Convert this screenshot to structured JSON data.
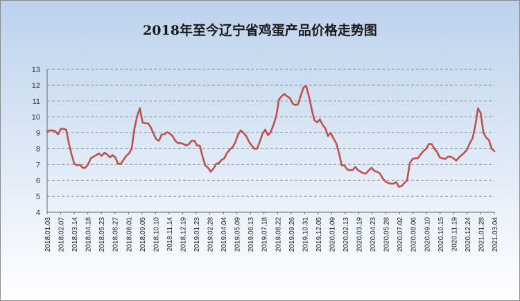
{
  "chart_data": {
    "type": "line",
    "title": "2018年至今辽宁省鸡蛋产品价格走势图",
    "xlabel": "",
    "ylabel": "",
    "ylim": [
      4,
      13
    ],
    "y_ticks": [
      "4",
      "5",
      "6",
      "7",
      "8",
      "9",
      "10",
      "11",
      "12",
      "13"
    ],
    "x_tick_labels": [
      "2018.01.03",
      "2018.02.07",
      "2018.03.14",
      "2018.04.18",
      "2018.05.23",
      "2018.06.27",
      "2018.08.01",
      "2018.09.05",
      "2018.10.10",
      "2018.11.14",
      "2018.12.19",
      "2019.01.23",
      "2019.02.28",
      "2019.04.04",
      "2019.05.09",
      "2019.06.13",
      "2019.07.18",
      "2019.08.22",
      "2019.09.26",
      "2019.10.31",
      "2019.12.05",
      "2020.01.09",
      "2020.02.13",
      "2020.03.19",
      "2020.04.23",
      "2020.05.28",
      "2020.07.02",
      "2020.08.06",
      "2020.09.10",
      "2020.10.15",
      "2020.11.19",
      "2020.12.24",
      "2021.01.28",
      "2021.03.04"
    ],
    "grid": true,
    "legend": "none",
    "line_color": "#c0504d",
    "series": [
      {
        "values": [
          9.1,
          9.15,
          9.15,
          9.1,
          8.9,
          9.25,
          9.25,
          9.2,
          8.3,
          7.6,
          7.05,
          6.95,
          7.0,
          6.8,
          6.8,
          7.0,
          7.4,
          7.5,
          7.6,
          7.7,
          7.55,
          7.75,
          7.65,
          7.45,
          7.6,
          7.45,
          7.05,
          7.05,
          7.3,
          7.55,
          7.7,
          8.0,
          9.25,
          10.05,
          10.55,
          9.65,
          9.6,
          9.6,
          9.35,
          8.95,
          8.6,
          8.5,
          8.9,
          8.9,
          9.05,
          8.95,
          8.8,
          8.5,
          8.35,
          8.35,
          8.3,
          8.2,
          8.3,
          8.5,
          8.5,
          8.2,
          8.2,
          7.5,
          6.95,
          6.8,
          6.55,
          6.75,
          7.05,
          7.1,
          7.3,
          7.4,
          7.75,
          7.95,
          8.1,
          8.4,
          8.9,
          9.15,
          9.0,
          8.8,
          8.45,
          8.2,
          8.0,
          8.0,
          8.45,
          8.95,
          9.2,
          8.85,
          9.05,
          9.5,
          10.05,
          11.1,
          11.3,
          11.45,
          11.3,
          11.2,
          10.85,
          10.75,
          10.8,
          11.35,
          11.85,
          11.95,
          11.3,
          10.5,
          9.8,
          9.65,
          9.85,
          9.5,
          9.3,
          8.8,
          9.0,
          8.65,
          8.35,
          7.75,
          6.95,
          6.95,
          6.7,
          6.65,
          6.65,
          6.85,
          6.65,
          6.55,
          6.45,
          6.45,
          6.65,
          6.8,
          6.6,
          6.55,
          6.45,
          6.15,
          5.95,
          5.85,
          5.8,
          5.8,
          5.9,
          5.6,
          5.65,
          5.85,
          6.0,
          7.1,
          7.35,
          7.4,
          7.4,
          7.65,
          7.85,
          8.0,
          8.3,
          8.3,
          8.0,
          7.8,
          7.45,
          7.4,
          7.35,
          7.5,
          7.5,
          7.4,
          7.25,
          7.45,
          7.6,
          7.75,
          7.95,
          8.35,
          8.65,
          9.45,
          10.55,
          10.25,
          9.0,
          8.7,
          8.55,
          8.0,
          7.85
        ]
      }
    ]
  }
}
